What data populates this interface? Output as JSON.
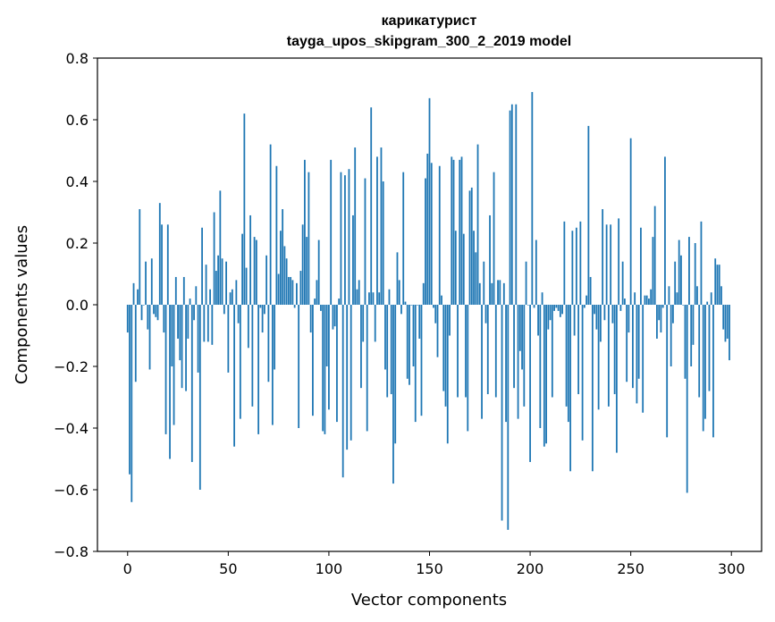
{
  "chart_data": {
    "type": "bar",
    "title": "карикатурист",
    "subtitle": "tayga_upos_skipgram_300_2_2019 model",
    "xlabel": "Vector components",
    "ylabel": "Components values",
    "xlim": [
      -15,
      315
    ],
    "ylim": [
      -0.8,
      0.8
    ],
    "xticks": [
      0,
      50,
      100,
      150,
      200,
      250,
      300
    ],
    "yticks": [
      0.8,
      0.6,
      0.4,
      0.2,
      0.0,
      -0.2,
      -0.4,
      -0.6,
      -0.8
    ],
    "ytick_labels": [
      "0.8",
      "0.6",
      "0.4",
      "0.2",
      "0.0",
      "−0.2",
      "−0.4",
      "−0.6",
      "−0.8"
    ],
    "bar_color": "#1f77b4",
    "grid": false,
    "values": [
      -0.09,
      -0.55,
      -0.64,
      0.07,
      -0.25,
      0.05,
      0.31,
      -0.05,
      0.0,
      0.14,
      -0.08,
      -0.21,
      0.15,
      -0.03,
      -0.04,
      -0.05,
      0.33,
      0.26,
      -0.09,
      -0.42,
      0.26,
      -0.5,
      -0.2,
      -0.39,
      0.09,
      -0.11,
      -0.18,
      -0.27,
      0.09,
      -0.28,
      -0.11,
      0.02,
      -0.51,
      -0.05,
      0.06,
      -0.22,
      -0.6,
      0.25,
      -0.12,
      0.13,
      -0.12,
      0.05,
      -0.13,
      0.3,
      0.11,
      0.16,
      0.37,
      0.15,
      -0.03,
      0.14,
      -0.22,
      0.04,
      0.05,
      -0.46,
      0.08,
      -0.06,
      -0.37,
      0.23,
      0.62,
      0.12,
      -0.14,
      0.29,
      -0.33,
      0.22,
      0.21,
      -0.42,
      -0.01,
      -0.09,
      -0.03,
      0.16,
      -0.25,
      0.52,
      -0.39,
      -0.21,
      0.45,
      0.1,
      0.24,
      0.31,
      0.19,
      0.15,
      0.09,
      0.09,
      0.08,
      -0.01,
      0.07,
      -0.4,
      0.11,
      0.26,
      0.47,
      0.22,
      0.43,
      -0.09,
      -0.36,
      0.02,
      0.08,
      0.21,
      -0.02,
      -0.41,
      -0.42,
      -0.2,
      -0.34,
      0.47,
      -0.08,
      -0.07,
      -0.38,
      0.02,
      0.43,
      -0.56,
      0.42,
      -0.47,
      0.44,
      -0.44,
      0.29,
      0.51,
      0.05,
      0.08,
      -0.27,
      -0.12,
      0.41,
      -0.41,
      0.04,
      0.64,
      0.04,
      -0.12,
      0.48,
      0.04,
      0.51,
      0.4,
      -0.21,
      -0.3,
      0.05,
      -0.29,
      -0.58,
      -0.45,
      0.17,
      0.08,
      -0.03,
      0.43,
      0.01,
      -0.24,
      -0.26,
      0.0,
      -0.2,
      -0.38,
      0.0,
      -0.11,
      -0.36,
      0.07,
      0.41,
      0.49,
      0.67,
      0.46,
      -0.01,
      -0.06,
      -0.17,
      0.45,
      0.03,
      -0.28,
      -0.33,
      -0.45,
      -0.1,
      0.48,
      0.47,
      0.24,
      -0.3,
      0.47,
      0.48,
      0.23,
      -0.3,
      -0.41,
      0.37,
      0.38,
      0.24,
      0.17,
      0.52,
      0.07,
      -0.37,
      0.14,
      -0.06,
      -0.29,
      0.29,
      0.07,
      0.43,
      -0.3,
      0.08,
      0.08,
      -0.7,
      0.07,
      -0.38,
      -0.73,
      0.63,
      0.65,
      -0.27,
      0.65,
      -0.37,
      -0.15,
      -0.21,
      -0.33,
      0.14,
      0.0,
      -0.51,
      0.69,
      -0.01,
      0.21,
      -0.1,
      -0.4,
      0.04,
      -0.46,
      -0.45,
      -0.08,
      -0.05,
      -0.3,
      -0.02,
      -0.01,
      -0.02,
      -0.04,
      -0.03,
      0.27,
      -0.33,
      -0.38,
      -0.54,
      0.24,
      -0.1,
      0.25,
      -0.29,
      0.27,
      -0.44,
      -0.01,
      0.03,
      0.58,
      0.09,
      -0.54,
      -0.03,
      -0.08,
      -0.34,
      -0.12,
      0.31,
      -0.05,
      0.26,
      -0.33,
      0.26,
      -0.06,
      -0.29,
      -0.48,
      0.28,
      -0.02,
      0.14,
      0.02,
      -0.25,
      -0.09,
      0.54,
      -0.27,
      0.04,
      -0.32,
      -0.24,
      0.25,
      -0.35,
      0.03,
      0.03,
      0.02,
      0.05,
      0.22,
      0.32,
      -0.11,
      -0.05,
      -0.09,
      -0.01,
      0.48,
      -0.43,
      0.06,
      -0.2,
      -0.06,
      0.14,
      0.04,
      0.21,
      0.16,
      0.0,
      -0.24,
      -0.61,
      0.22,
      -0.2,
      -0.13,
      0.2,
      0.06,
      -0.3,
      0.27,
      -0.41,
      -0.37,
      0.01,
      -0.28,
      0.04,
      -0.43,
      0.15,
      0.13,
      0.13,
      0.06,
      -0.08,
      -0.12,
      -0.11,
      -0.18
    ]
  }
}
